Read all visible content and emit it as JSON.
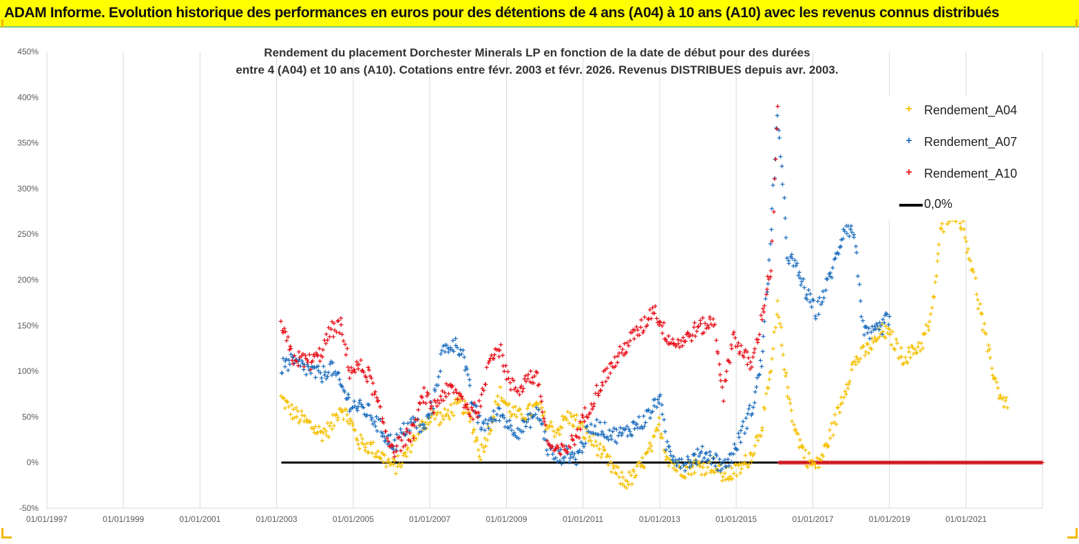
{
  "banner": {
    "title": "ADAM Informe. Evolution historique des performances en euros pour des détentions de 4 ans (A04) à 10 ans (A10) avec les revenus connus distribués"
  },
  "colors": {
    "banner_bg": "#ffff00",
    "a04": "#f5c000",
    "a07": "#1f6fbf",
    "a10": "#e8101a",
    "zero": "#000000"
  },
  "chart_data": {
    "type": "scatter",
    "title_lines": [
      "Rendement du placement Dorchester Minerals LP en fonction de la date de début pour des durées",
      "entre 4 (A04) et 10 ans (A10).  Cotations entre févr. 2003 et févr. 2026. Revenus DISTRIBUES depuis avr. 2003."
    ],
    "xlabel": "",
    "ylabel": "",
    "x_range": [
      "1997-01-01",
      "2022-12-31"
    ],
    "x_ticks": [
      "01/01/1997",
      "01/01/1999",
      "01/01/2001",
      "01/01/2003",
      "01/01/2005",
      "01/01/2007",
      "01/01/2009",
      "01/01/2011",
      "01/01/2013",
      "01/01/2015",
      "01/01/2017",
      "01/01/2019",
      "01/01/2021"
    ],
    "y_ticks": [
      "450%",
      "400%",
      "350%",
      "300%",
      "250%",
      "200%",
      "150%",
      "100%",
      "50%",
      "0%",
      "-50%"
    ],
    "ylim": [
      -50,
      450
    ],
    "grid": "vertical",
    "legend_position": "top-right",
    "series": [
      {
        "name": "Rendement_A04",
        "color": "#f5c000",
        "points": [
          [
            "2003-02-15",
            70
          ],
          [
            "2003-06-01",
            55
          ],
          [
            "2003-12-01",
            40
          ],
          [
            "2004-03-01",
            32
          ],
          [
            "2004-06-01",
            38
          ],
          [
            "2004-09-01",
            62
          ],
          [
            "2004-12-01",
            45
          ],
          [
            "2005-03-01",
            22
          ],
          [
            "2005-06-01",
            18
          ],
          [
            "2005-09-01",
            10
          ],
          [
            "2005-12-01",
            0
          ],
          [
            "2006-02-01",
            -5
          ],
          [
            "2006-05-01",
            5
          ],
          [
            "2006-08-01",
            28
          ],
          [
            "2006-11-01",
            42
          ],
          [
            "2007-02-01",
            52
          ],
          [
            "2007-05-01",
            48
          ],
          [
            "2007-08-01",
            58
          ],
          [
            "2007-11-01",
            65
          ],
          [
            "2008-02-01",
            45
          ],
          [
            "2008-05-01",
            10
          ],
          [
            "2008-08-01",
            40
          ],
          [
            "2008-11-01",
            75
          ],
          [
            "2009-02-01",
            58
          ],
          [
            "2009-05-01",
            50
          ],
          [
            "2009-08-01",
            55
          ],
          [
            "2009-11-01",
            62
          ],
          [
            "2010-02-01",
            40
          ],
          [
            "2010-05-01",
            35
          ],
          [
            "2010-08-01",
            50
          ],
          [
            "2010-11-01",
            45
          ],
          [
            "2011-02-01",
            30
          ],
          [
            "2011-05-01",
            20
          ],
          [
            "2011-08-01",
            5
          ],
          [
            "2011-11-01",
            -10
          ],
          [
            "2012-02-01",
            -22
          ],
          [
            "2012-05-01",
            -15
          ],
          [
            "2012-08-01",
            0
          ],
          [
            "2012-11-01",
            20
          ],
          [
            "2013-01-01",
            42
          ],
          [
            "2013-03-01",
            10
          ],
          [
            "2013-06-01",
            -5
          ],
          [
            "2013-09-01",
            -8
          ],
          [
            "2013-12-01",
            -3
          ],
          [
            "2014-03-01",
            -5
          ],
          [
            "2014-06-01",
            -2
          ],
          [
            "2014-09-01",
            -15
          ],
          [
            "2014-12-01",
            -12
          ],
          [
            "2015-03-01",
            -5
          ],
          [
            "2015-06-01",
            10
          ],
          [
            "2015-09-01",
            40
          ],
          [
            "2015-12-01",
            100
          ],
          [
            "2016-02-01",
            170
          ],
          [
            "2016-05-01",
            80
          ],
          [
            "2016-08-01",
            30
          ],
          [
            "2016-11-01",
            5
          ],
          [
            "2017-02-01",
            -5
          ],
          [
            "2017-05-01",
            15
          ],
          [
            "2017-08-01",
            45
          ],
          [
            "2017-11-01",
            80
          ],
          [
            "2018-02-01",
            110
          ],
          [
            "2018-05-01",
            120
          ],
          [
            "2018-08-01",
            130
          ],
          [
            "2018-11-01",
            145
          ],
          [
            "2019-02-01",
            135
          ],
          [
            "2019-05-01",
            115
          ],
          [
            "2019-08-01",
            120
          ],
          [
            "2019-11-01",
            130
          ],
          [
            "2020-02-01",
            155
          ],
          [
            "2020-05-01",
            250
          ],
          [
            "2020-08-01",
            275
          ],
          [
            "2020-11-01",
            270
          ],
          [
            "2021-02-01",
            230
          ],
          [
            "2021-05-01",
            175
          ],
          [
            "2021-08-01",
            120
          ],
          [
            "2021-11-01",
            80
          ],
          [
            "2022-02-01",
            60
          ]
        ]
      },
      {
        "name": "Rendement_A07",
        "color": "#1f6fbf",
        "points": [
          [
            "2003-02-15",
            105
          ],
          [
            "2003-06-01",
            110
          ],
          [
            "2003-12-01",
            100
          ],
          [
            "2004-03-01",
            95
          ],
          [
            "2004-06-01",
            105
          ],
          [
            "2004-09-01",
            85
          ],
          [
            "2004-12-01",
            65
          ],
          [
            "2005-03-01",
            60
          ],
          [
            "2005-06-01",
            55
          ],
          [
            "2005-09-01",
            40
          ],
          [
            "2005-12-01",
            25
          ],
          [
            "2006-02-01",
            20
          ],
          [
            "2006-05-01",
            35
          ],
          [
            "2006-08-01",
            45
          ],
          [
            "2006-11-01",
            35
          ],
          [
            "2007-02-01",
            65
          ],
          [
            "2007-05-01",
            120
          ],
          [
            "2007-08-01",
            130
          ],
          [
            "2007-11-01",
            125
          ],
          [
            "2008-02-01",
            70
          ],
          [
            "2008-05-01",
            40
          ],
          [
            "2008-08-01",
            45
          ],
          [
            "2008-11-01",
            55
          ],
          [
            "2009-02-01",
            40
          ],
          [
            "2009-05-01",
            35
          ],
          [
            "2009-08-01",
            45
          ],
          [
            "2009-11-01",
            55
          ],
          [
            "2010-02-01",
            15
          ],
          [
            "2010-05-01",
            5
          ],
          [
            "2010-08-01",
            10
          ],
          [
            "2010-11-01",
            5
          ],
          [
            "2011-02-01",
            30
          ],
          [
            "2011-05-01",
            40
          ],
          [
            "2011-08-01",
            35
          ],
          [
            "2011-11-01",
            30
          ],
          [
            "2012-02-01",
            32
          ],
          [
            "2012-05-01",
            40
          ],
          [
            "2012-08-01",
            45
          ],
          [
            "2012-11-01",
            60
          ],
          [
            "2013-01-01",
            75
          ],
          [
            "2013-03-01",
            20
          ],
          [
            "2013-06-01",
            5
          ],
          [
            "2013-09-01",
            0
          ],
          [
            "2013-12-01",
            5
          ],
          [
            "2014-03-01",
            10
          ],
          [
            "2014-06-01",
            5
          ],
          [
            "2014-09-01",
            -5
          ],
          [
            "2014-12-01",
            10
          ],
          [
            "2015-03-01",
            35
          ],
          [
            "2015-06-01",
            60
          ],
          [
            "2015-09-01",
            110
          ],
          [
            "2015-12-01",
            250
          ],
          [
            "2016-02-01",
            385
          ],
          [
            "2016-05-01",
            230
          ],
          [
            "2016-08-01",
            210
          ],
          [
            "2016-11-01",
            185
          ],
          [
            "2017-02-01",
            165
          ],
          [
            "2017-05-01",
            190
          ],
          [
            "2017-08-01",
            220
          ],
          [
            "2017-11-01",
            260
          ],
          [
            "2018-02-01",
            250
          ],
          [
            "2018-05-01",
            140
          ],
          [
            "2018-08-01",
            140
          ],
          [
            "2018-11-01",
            150
          ],
          [
            "2019-01-01",
            160
          ]
        ]
      },
      {
        "name": "Rendement_A10",
        "color": "#e8101a",
        "points": [
          [
            "2003-02-15",
            150
          ],
          [
            "2003-06-01",
            115
          ],
          [
            "2003-12-01",
            110
          ],
          [
            "2004-03-01",
            120
          ],
          [
            "2004-06-01",
            145
          ],
          [
            "2004-09-01",
            150
          ],
          [
            "2004-12-01",
            100
          ],
          [
            "2005-03-01",
            105
          ],
          [
            "2005-06-01",
            95
          ],
          [
            "2005-09-01",
            60
          ],
          [
            "2005-12-01",
            25
          ],
          [
            "2006-02-01",
            15
          ],
          [
            "2006-05-01",
            25
          ],
          [
            "2006-08-01",
            35
          ],
          [
            "2006-11-01",
            75
          ],
          [
            "2007-02-01",
            60
          ],
          [
            "2007-05-01",
            75
          ],
          [
            "2007-08-01",
            80
          ],
          [
            "2007-11-01",
            70
          ],
          [
            "2008-02-01",
            55
          ],
          [
            "2008-05-01",
            60
          ],
          [
            "2008-08-01",
            120
          ],
          [
            "2008-11-01",
            125
          ],
          [
            "2009-02-01",
            85
          ],
          [
            "2009-05-01",
            80
          ],
          [
            "2009-08-01",
            95
          ],
          [
            "2009-11-01",
            90
          ],
          [
            "2010-02-01",
            20
          ],
          [
            "2010-05-01",
            10
          ],
          [
            "2010-08-01",
            15
          ],
          [
            "2010-11-01",
            30
          ],
          [
            "2011-02-01",
            55
          ],
          [
            "2011-05-01",
            75
          ],
          [
            "2011-08-01",
            95
          ],
          [
            "2011-11-01",
            110
          ],
          [
            "2012-02-01",
            125
          ],
          [
            "2012-05-01",
            140
          ],
          [
            "2012-08-01",
            150
          ],
          [
            "2012-11-01",
            170
          ],
          [
            "2013-01-01",
            155
          ],
          [
            "2013-03-01",
            140
          ],
          [
            "2013-06-01",
            130
          ],
          [
            "2013-09-01",
            135
          ],
          [
            "2013-12-01",
            145
          ],
          [
            "2014-03-01",
            150
          ],
          [
            "2014-06-01",
            155
          ],
          [
            "2014-09-01",
            75
          ],
          [
            "2014-12-01",
            140
          ],
          [
            "2015-03-01",
            120
          ],
          [
            "2015-06-01",
            105
          ],
          [
            "2015-09-01",
            160
          ],
          [
            "2015-12-01",
            215
          ],
          [
            "2016-02-01",
            390
          ]
        ]
      }
    ],
    "reference_line": {
      "name": "0,0%",
      "color": "#000000",
      "y": 0,
      "x_start": "2003-02-15",
      "x_end": "2022-12-31"
    },
    "flat_series": {
      "series": "Rendement_A10",
      "y": 0,
      "x_start": "2016-02-15",
      "x_end": "2022-12-31"
    }
  },
  "legend": [
    {
      "label": "Rendement_A04",
      "marker": "+",
      "color": "#f5c000",
      "kind": "marker"
    },
    {
      "label": "Rendement_A07",
      "marker": "+",
      "color": "#1f6fbf",
      "kind": "marker"
    },
    {
      "label": "Rendement_A10",
      "marker": "+",
      "color": "#e8101a",
      "kind": "marker"
    },
    {
      "label": "0,0%",
      "marker": "",
      "color": "#000000",
      "kind": "line"
    }
  ]
}
